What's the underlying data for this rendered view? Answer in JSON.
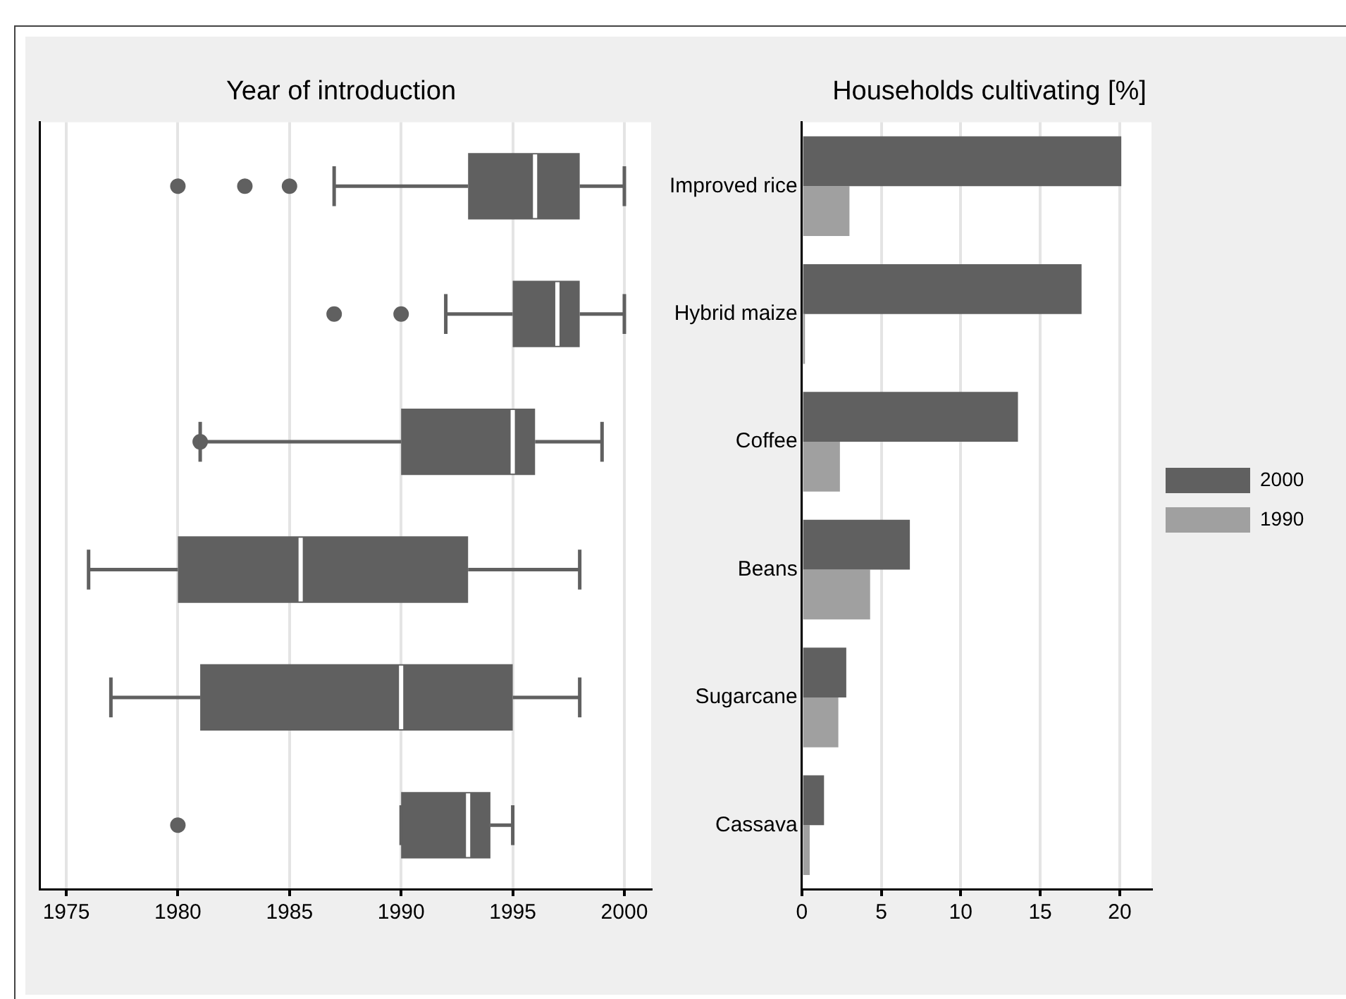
{
  "chart_data": [
    {
      "type": "box",
      "title": "Year of introduction",
      "orientation": "horizontal",
      "categories": [
        null,
        null,
        null,
        null,
        null,
        null
      ],
      "color": "#606060",
      "boxes": [
        {
          "low": 1987,
          "q1": 1993,
          "median": 1996,
          "q3": 1998,
          "high": 2000,
          "outliers": [
            1980,
            1983,
            1985
          ]
        },
        {
          "low": 1992,
          "q1": 1995,
          "median": 1997,
          "q3": 1998,
          "high": 2000,
          "outliers": [
            1987,
            1990
          ]
        },
        {
          "low": 1981,
          "q1": 1990,
          "median": 1995,
          "q3": 1996,
          "high": 1999,
          "outliers": [
            1981
          ]
        },
        {
          "low": 1976,
          "q1": 1980,
          "median": 1985.5,
          "q3": 1993,
          "high": 1998
        },
        {
          "low": 1977,
          "q1": 1981,
          "median": 1990,
          "q3": 1995,
          "high": 1998
        },
        {
          "low": 1990,
          "q1": 1990,
          "median": 1993,
          "q3": 1994,
          "high": 1995,
          "outliers": [
            1980
          ]
        }
      ],
      "xlim": [
        1973.8,
        2001.2
      ],
      "xticks": [
        1975,
        1980,
        1985,
        1990,
        1995,
        2000
      ],
      "grid": "x",
      "tick_labels": "x",
      "legend": false
    },
    {
      "type": "bar",
      "title": "Households cultivating [%]",
      "orientation": "horizontal",
      "categories": [
        "Improved rice",
        "Hybrid maize",
        "Coffee",
        "Beans",
        "Sugarcane",
        "Cassava"
      ],
      "series": [
        {
          "name": "2000",
          "color": "#606060",
          "values": [
            20.1,
            17.6,
            13.6,
            6.8,
            2.8,
            1.4
          ]
        },
        {
          "name": "1990",
          "color": "#a0a0a0",
          "values": [
            3.0,
            0.2,
            2.4,
            4.3,
            2.3,
            0.5
          ]
        }
      ],
      "xlim": [
        0,
        22
      ],
      "xticks": [
        0,
        5,
        10,
        15,
        20
      ],
      "grid": "x",
      "legend": "right"
    }
  ]
}
